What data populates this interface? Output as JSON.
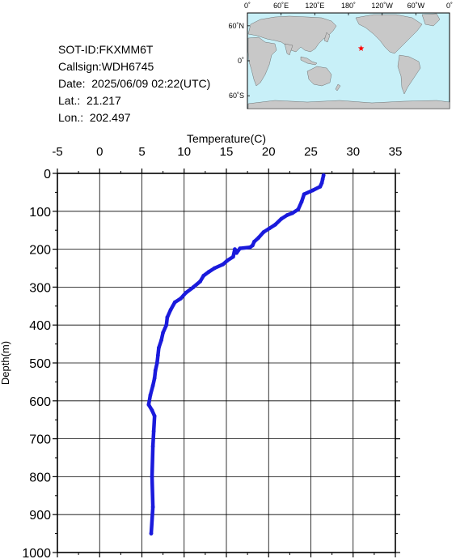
{
  "info": {
    "sot_id": "SOT-ID:FKXMM6T",
    "callsign": "Callsign:WDH6745",
    "date": "Date:  2025/06/09 02:22(UTC)",
    "lat": "Lat.:  21.217",
    "lon": "Lon.:  202.497"
  },
  "map": {
    "lon_labels": [
      "0˚",
      "60˚E",
      "120˚E",
      "180˚",
      "120˚W",
      "60˚W",
      "0˚"
    ],
    "lat_labels": [
      "60˚N",
      "0˚",
      "60˚S"
    ],
    "ocean_color": "#c8f0f8",
    "land_color": "#c8c8c8",
    "marker": {
      "lat": 21.217,
      "lon": 202.497,
      "color": "#ff0000"
    }
  },
  "chart_data": {
    "type": "line",
    "xlabel": "Temperature(C)",
    "ylabel": "Depth(m)",
    "xlim": [
      -5,
      35
    ],
    "ylim": [
      1000,
      0
    ],
    "x_ticks": [
      "-5",
      "0",
      "5",
      "10",
      "15",
      "20",
      "25",
      "30",
      "35"
    ],
    "y_ticks": [
      "0",
      "100",
      "200",
      "300",
      "400",
      "500",
      "600",
      "700",
      "800",
      "900",
      "1000"
    ],
    "grid": true,
    "line_color": "#1a1adc",
    "series": [
      {
        "x": [
          26.5,
          26.4,
          26.3,
          26.2,
          26.1,
          25.2,
          24.2,
          23.9,
          23.5,
          22.8,
          22.2,
          21.5,
          20.8,
          20.1,
          19.4,
          18.8,
          18.3,
          18.1,
          17.8,
          16.6,
          16.2,
          16.0,
          15.8,
          15.1,
          14.6,
          13.6,
          12.9,
          12.3,
          11.9,
          11.1,
          10.2,
          9.6,
          8.9,
          8.4,
          8.0,
          7.9,
          7.5,
          7.3,
          7.0,
          6.9,
          6.8,
          6.6,
          6.5,
          6.3,
          6.0,
          5.8,
          6.2,
          6.5,
          6.4,
          6.3,
          6.2,
          6.3,
          6.1
        ],
        "y": [
          5,
          15,
          25,
          30,
          35,
          45,
          55,
          75,
          95,
          105,
          110,
          120,
          135,
          145,
          155,
          170,
          180,
          190,
          195,
          198,
          210,
          200,
          220,
          230,
          240,
          250,
          260,
          270,
          285,
          300,
          315,
          330,
          340,
          360,
          380,
          400,
          420,
          440,
          460,
          480,
          500,
          520,
          540,
          560,
          585,
          610,
          625,
          640,
          680,
          720,
          800,
          880,
          950
        ]
      }
    ]
  }
}
